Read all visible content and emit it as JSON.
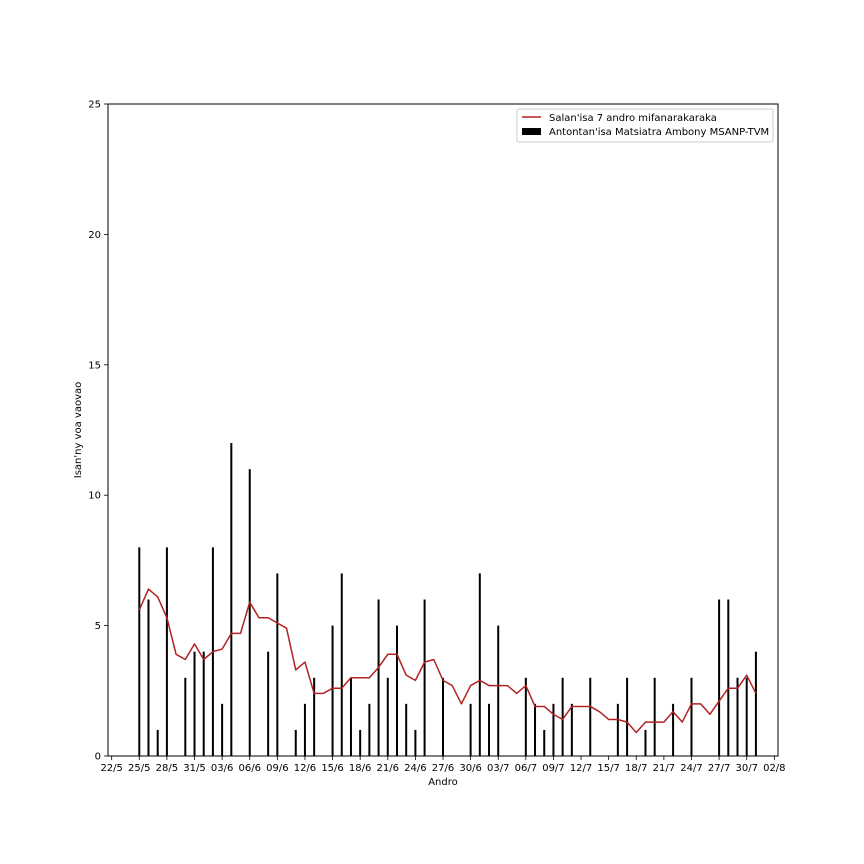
{
  "chart_data": {
    "type": "bar",
    "xlabel": "Andro",
    "ylabel": "Isan'ny voa vaovao",
    "ylim": [
      0,
      25
    ],
    "yticks": [
      0,
      5,
      10,
      15,
      20,
      25
    ],
    "start_date": "2020-05-22",
    "xlim_days": [
      -0.4,
      72.4
    ],
    "xtick_labels": [
      "22/5",
      "25/5",
      "28/5",
      "31/5",
      "03/6",
      "06/6",
      "09/6",
      "12/6",
      "15/6",
      "18/6",
      "21/6",
      "24/6",
      "27/6",
      "30/6",
      "03/7",
      "06/7",
      "09/7",
      "12/7",
      "15/7",
      "18/7",
      "21/7",
      "24/7",
      "27/7",
      "30/7",
      "02/8"
    ],
    "xtick_days": [
      0,
      3,
      6,
      9,
      12,
      15,
      18,
      21,
      24,
      27,
      30,
      33,
      36,
      39,
      42,
      45,
      48,
      51,
      54,
      57,
      60,
      63,
      66,
      69,
      72
    ],
    "legend": {
      "position": "top-right",
      "line_label": "Salan'isa 7 andro mifanarakaraka",
      "bar_label": "Antontan'isa Matsiatra Ambony MSANP-TVM"
    },
    "colors": {
      "line": "#b22222",
      "bar": "#000000"
    },
    "bars": {
      "days": [
        3,
        4,
        5,
        6,
        8,
        9,
        10,
        11,
        12,
        13,
        15,
        17,
        18,
        20,
        21,
        22,
        24,
        25,
        26,
        27,
        28,
        29,
        30,
        31,
        32,
        33,
        34,
        36,
        39,
        40,
        41,
        42,
        45,
        46,
        47,
        48,
        49,
        50,
        52,
        55,
        56,
        58,
        59,
        61,
        63,
        66,
        67,
        68,
        69,
        70
      ],
      "values": [
        8,
        6,
        1,
        8,
        3,
        4,
        4,
        8,
        2,
        12,
        11,
        4,
        7,
        1,
        2,
        3,
        5,
        7,
        3,
        1,
        2,
        6,
        3,
        5,
        2,
        1,
        6,
        3,
        2,
        7,
        2,
        5,
        3,
        2,
        1,
        2,
        3,
        2,
        3,
        2,
        3,
        1,
        3,
        2,
        3,
        6,
        6,
        3,
        3,
        4
      ]
    },
    "line": {
      "days": [
        3,
        4,
        5,
        6,
        7,
        8,
        9,
        10,
        11,
        12,
        13,
        14,
        15,
        16,
        17,
        18,
        19,
        20,
        21,
        22,
        23,
        24,
        25,
        26,
        27,
        28,
        29,
        30,
        31,
        32,
        33,
        34,
        35,
        36,
        37,
        38,
        39,
        40,
        41,
        42,
        43,
        44,
        45,
        46,
        47,
        48,
        49,
        50,
        51,
        52,
        53,
        54,
        55,
        56,
        57,
        58,
        59,
        60,
        61,
        62,
        63,
        64,
        65,
        66,
        67,
        68,
        69,
        70
      ],
      "values": [
        5.6,
        6.4,
        6.1,
        5.3,
        3.9,
        3.7,
        4.3,
        3.7,
        4.0,
        4.1,
        4.7,
        4.7,
        5.9,
        5.3,
        5.3,
        5.1,
        4.9,
        3.3,
        3.6,
        2.4,
        2.4,
        2.6,
        2.6,
        3.0,
        3.0,
        3.0,
        3.4,
        3.9,
        3.9,
        3.1,
        2.9,
        3.6,
        3.7,
        2.9,
        2.7,
        2.0,
        2.7,
        2.9,
        2.7,
        2.7,
        2.7,
        2.4,
        2.7,
        1.9,
        1.9,
        1.6,
        1.4,
        1.9,
        1.9,
        1.9,
        1.7,
        1.4,
        1.4,
        1.3,
        0.9,
        1.3,
        1.3,
        1.3,
        1.7,
        1.3,
        2.0,
        2.0,
        1.6,
        2.1,
        2.6,
        2.6,
        3.1,
        2.4
      ]
    }
  }
}
